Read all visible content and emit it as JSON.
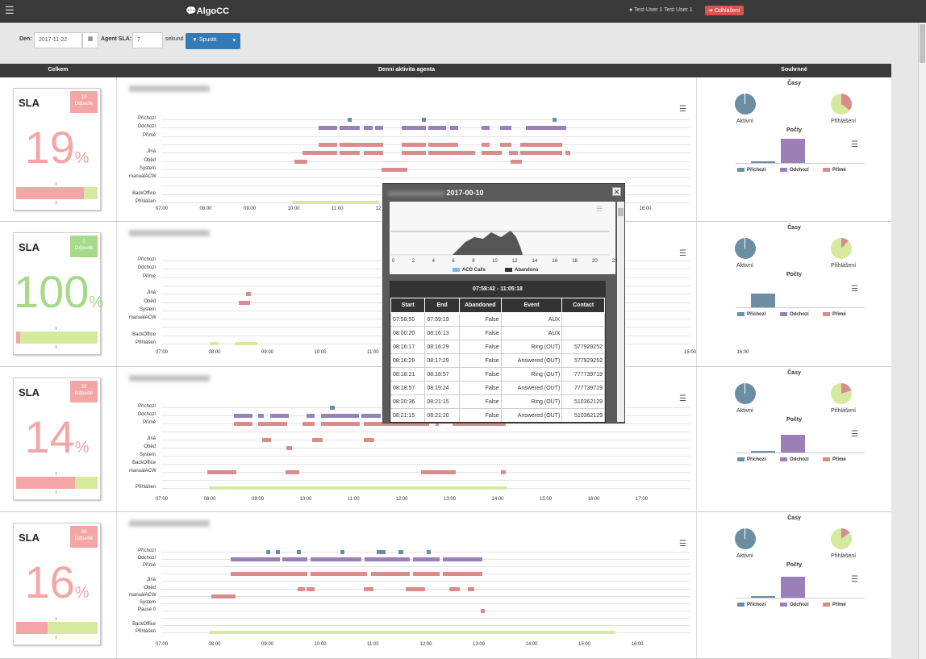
{
  "nav": {
    "brand": "AlgoCC",
    "user": "Test User 1 Test User 1",
    "logout": "Odhlášení"
  },
  "filter": {
    "day_label": "Den:",
    "day_value": "2017-11-22",
    "sla_label": "Agent SLA:",
    "sla_value": "7",
    "sla_unit": "sekund",
    "run": "Spustit"
  },
  "headers": {
    "total": "Celkem",
    "activity": "Denní aktivita agenta",
    "summary": "Souhrnné"
  },
  "agents": [
    {
      "sla_label": "SLA",
      "pct": "19",
      "badge_count": "10",
      "badge_label": "Odpadlé",
      "badge_color": "#f4a6a6",
      "pct_color": "#f4a6a6",
      "bar_red": 0.83
    },
    {
      "sla_label": "SLA",
      "pct": "100",
      "badge_count": "0",
      "badge_label": "Odpadlé",
      "badge_color": "#a6d98a",
      "pct_color": "#a6d98a",
      "bar_red": 0.05
    },
    {
      "sla_label": "SLA",
      "pct": "14",
      "badge_count": "32",
      "badge_label": "Odpadlé",
      "badge_color": "#f4a6a6",
      "pct_color": "#f4a6a6",
      "bar_red": 0.72
    },
    {
      "sla_label": "SLA",
      "pct": "16",
      "badge_count": "39",
      "badge_label": "Odpadlé",
      "badge_color": "#f4a6a6",
      "pct_color": "#f4a6a6",
      "bar_red": 0.39
    }
  ],
  "timeline_labels": {
    "a": [
      "Příchozí",
      "Odchozí",
      "Přímé",
      "",
      "Jiná",
      "Oběd",
      "System",
      "manuálACW",
      "",
      "BackOffice",
      "Přihlášen"
    ],
    "b": [
      "Příchozí",
      "Odchozí",
      "Přímé",
      "",
      "Jiná",
      "Oběd",
      "System",
      "manuálACW",
      "",
      "BackOffice",
      "Přihlášen"
    ],
    "c": [
      "Příchozí",
      "Odchozí",
      "Přímé",
      "",
      "Jiná",
      "Oběd",
      "System",
      "BackOffice",
      "manuálACW",
      "",
      "Přihlášen"
    ],
    "d": [
      "Příchozí",
      "Odchozí",
      "Přímé",
      "",
      "Jiná",
      "Oběd",
      "manuálACW",
      "System",
      "Pause 0",
      "",
      "BackOffice",
      "Přihlášen"
    ]
  },
  "xaxis": {
    "r1": [
      "07:00",
      "08:00",
      "09:00",
      "10:00",
      "11:00",
      "12:00",
      "",
      "",
      "",
      "",
      "",
      "16:00"
    ],
    "r2": [
      "07:00",
      "08:00",
      "09:00",
      "10:00",
      "11:00",
      "",
      "",
      "",
      "",
      "",
      "15:00",
      "16:00"
    ],
    "r3": [
      "07:00",
      "08:00",
      "09:00",
      "10:00",
      "11:00",
      "12:00",
      "13:00",
      "14:00",
      "15:00",
      "16:00",
      "17:00"
    ],
    "r4": [
      "07:00",
      "08:00",
      "09:00",
      "10:00",
      "11:00",
      "12:00",
      "13:00",
      "14:00",
      "15:00",
      "16:00"
    ]
  },
  "summary": {
    "casy": "Časy",
    "pocty": "Počty",
    "aktivni": "Aktivní",
    "prihlaseni": "Přihlášení",
    "legend": [
      "Příchozí",
      "Odchozí",
      "Přímé"
    ]
  },
  "colors": {
    "incoming": "#6b8ea3",
    "outgoing": "#9b7fb8",
    "direct": "#d98c8c",
    "logged": "#d6ea9f"
  },
  "popup": {
    "title": "2017-00-10",
    "legend": [
      "ACD Calls",
      "Abandons"
    ],
    "xticks": [
      "0",
      "2",
      "4",
      "6",
      "8",
      "10",
      "12",
      "14",
      "16",
      "18",
      "20",
      "22"
    ],
    "range": "07:58:42 - 11:05:18",
    "columns": [
      "Start",
      "End",
      "Abandoned",
      "Event",
      "Contact"
    ],
    "rows": [
      [
        "07:58:50",
        "07:59:19",
        "False",
        "AUX",
        ""
      ],
      [
        "08:00:20",
        "08:16:13",
        "False",
        "AUX",
        ""
      ],
      [
        "08:16:17",
        "08:16:29",
        "False",
        "Ring (OUT)",
        "577929252"
      ],
      [
        "08:16:29",
        "08:17:29",
        "False",
        "Answered (OUT)",
        "577929252"
      ],
      [
        "08:18:21",
        "08:18:57",
        "False",
        "Ring (OUT)",
        "777739719"
      ],
      [
        "08:18:57",
        "08:19:24",
        "False",
        "Answered (OUT)",
        "777739719"
      ],
      [
        "08:20:36",
        "08:21:15",
        "False",
        "Ring (OUT)",
        "510362129"
      ],
      [
        "08:21:15",
        "08:21:20",
        "False",
        "Answered (OUT)",
        "510362129"
      ]
    ]
  }
}
